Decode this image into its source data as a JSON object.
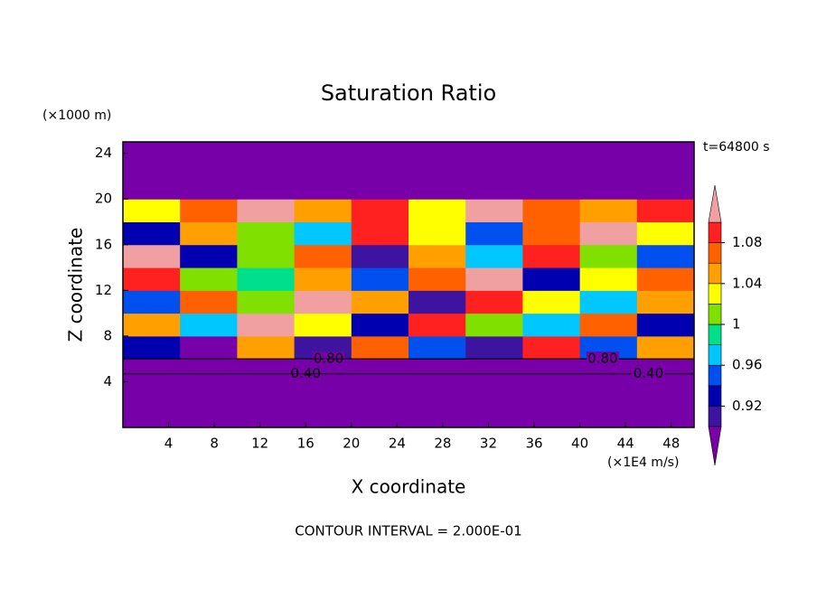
{
  "chart_data": {
    "type": "contour",
    "title": "Saturation Ratio",
    "x_label": "X coordinate",
    "y_label": "Z coordinate",
    "x_unit": "(×1E4 m/s)",
    "y_unit": "(×1000 m)",
    "time_label": "t=64800 s",
    "footer": "CONTOUR INTERVAL = 2.000E-01",
    "xlim": [
      0,
      50
    ],
    "ylim": [
      0,
      25
    ],
    "xticks": [
      4,
      8,
      12,
      16,
      20,
      24,
      28,
      32,
      36,
      40,
      44,
      48
    ],
    "yticks": [
      4,
      8,
      12,
      16,
      20,
      24
    ],
    "x_edges": [
      0,
      5,
      10,
      15,
      20,
      25,
      30,
      35,
      40,
      45,
      50
    ],
    "y_edges": [
      0,
      2,
      4,
      6,
      8,
      10,
      12,
      14,
      16,
      18,
      20,
      22,
      24,
      25
    ],
    "z": [
      [
        0.3,
        0.3,
        0.3,
        0.3,
        0.3,
        0.3,
        0.3,
        0.3,
        0.3,
        0.3
      ],
      [
        0.35,
        0.35,
        0.35,
        0.35,
        0.35,
        0.35,
        0.35,
        0.35,
        0.35,
        0.35
      ],
      [
        0.6,
        0.6,
        0.6,
        0.6,
        0.6,
        0.6,
        0.6,
        0.6,
        0.6,
        0.6
      ],
      [
        0.93,
        0.89,
        1.05,
        0.91,
        1.07,
        0.95,
        0.9,
        1.09,
        0.94,
        1.04
      ],
      [
        1.05,
        0.97,
        1.11,
        1.03,
        0.92,
        1.09,
        1.01,
        0.96,
        1.06,
        0.93
      ],
      [
        0.95,
        1.07,
        1.0,
        1.11,
        1.04,
        0.91,
        1.08,
        1.02,
        0.97,
        1.05
      ],
      [
        1.09,
        1.01,
        0.99,
        1.05,
        0.94,
        1.06,
        1.1,
        0.93,
        1.03,
        1.07
      ],
      [
        1.11,
        0.93,
        1.01,
        1.07,
        0.91,
        1.04,
        0.96,
        1.09,
        1.01,
        0.95
      ],
      [
        0.92,
        1.05,
        1.0,
        0.97,
        1.08,
        1.02,
        0.94,
        1.06,
        1.11,
        1.03
      ],
      [
        1.03,
        1.07,
        1.11,
        1.05,
        1.09,
        1.03,
        1.11,
        1.07,
        1.05,
        1.09
      ],
      [
        0.6,
        0.6,
        0.6,
        0.6,
        0.6,
        0.6,
        0.6,
        0.6,
        0.6,
        0.6
      ],
      [
        0.4,
        0.4,
        0.4,
        0.4,
        0.4,
        0.4,
        0.4,
        0.4,
        0.4,
        0.4
      ],
      [
        0.35,
        0.35,
        0.35,
        0.35,
        0.35,
        0.35,
        0.35,
        0.35,
        0.35,
        0.35
      ]
    ],
    "levels": [
      0.9,
      0.92,
      0.94,
      0.96,
      0.98,
      1,
      1.02,
      1.04,
      1.06,
      1.08,
      1.1
    ],
    "colors": [
      "#7800a8",
      "#3c14a0",
      "#0000b0",
      "#0050f0",
      "#00c8ff",
      "#00e08c",
      "#80e000",
      "#ffff00",
      "#ffa000",
      "#ff6000",
      "#ff2020",
      "#f0a0a0"
    ],
    "colorbar_ticks": [
      0.92,
      0.96,
      1,
      1.04,
      1.08
    ],
    "contour_labels": [
      {
        "value": 0.4,
        "label": "0.40",
        "x": 16,
        "y": 4.7
      },
      {
        "value": 0.4,
        "label": "0.40",
        "x": 46,
        "y": 4.7
      },
      {
        "value": 0.8,
        "label": "0.80",
        "x": 18,
        "y": 6.0
      },
      {
        "value": 0.8,
        "label": "0.80",
        "x": 42,
        "y": 6.0
      }
    ]
  }
}
